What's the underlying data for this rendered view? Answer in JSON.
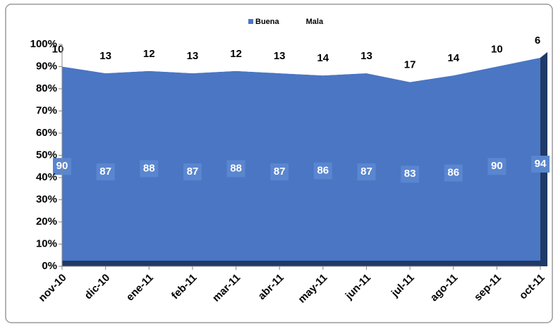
{
  "chart_data": {
    "type": "stacked_area",
    "categories": [
      "nov-10",
      "dic-10",
      "ene-11",
      "feb-11",
      "mar-11",
      "abr-11",
      "may-11",
      "jun-11",
      "jul-11",
      "ago-11",
      "sep-11",
      "oct-11"
    ],
    "series": [
      {
        "name": "Buena",
        "color": "#4a76c4",
        "values": [
          90,
          87,
          88,
          87,
          88,
          87,
          86,
          87,
          83,
          86,
          90,
          94
        ]
      },
      {
        "name": "Mala",
        "color": "#ffffff",
        "values": [
          10,
          13,
          12,
          13,
          12,
          13,
          14,
          13,
          17,
          14,
          10,
          6
        ]
      }
    ],
    "ylim": [
      0,
      100
    ],
    "yticks": [
      {
        "value": 0,
        "label": "0%"
      },
      {
        "value": 10,
        "label": "10%"
      },
      {
        "value": 20,
        "label": "20%"
      },
      {
        "value": 30,
        "label": "30%"
      },
      {
        "value": 40,
        "label": "40%"
      },
      {
        "value": 50,
        "label": "50%"
      },
      {
        "value": 60,
        "label": "60%"
      },
      {
        "value": 70,
        "label": "70%"
      },
      {
        "value": 80,
        "label": "80%"
      },
      {
        "value": 90,
        "label": "90%"
      },
      {
        "value": 100,
        "label": "100%"
      }
    ],
    "legend": "top"
  }
}
